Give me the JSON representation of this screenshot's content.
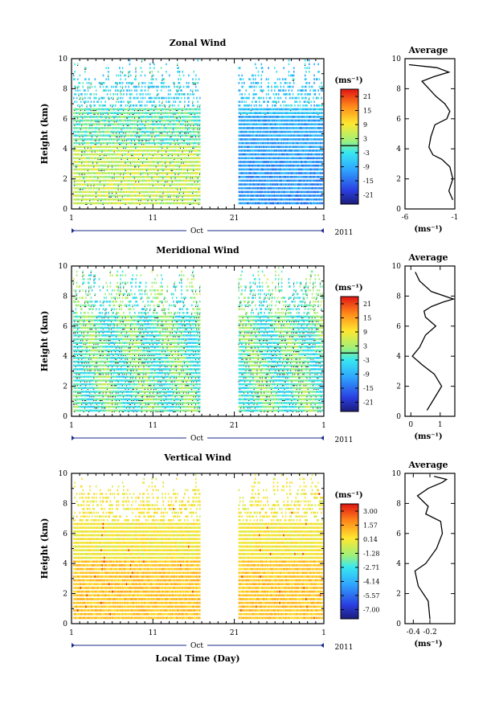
{
  "chart_data": [
    {
      "type": "heatmap",
      "title": "Zonal Wind",
      "ylabel": "Height (km)",
      "ylim": [
        0,
        10
      ],
      "y_ticks": [
        "0",
        "2",
        "4",
        "6",
        "8",
        "10"
      ],
      "x_ticks": [
        "1",
        "11",
        "21",
        "1"
      ],
      "x_month": "Oct",
      "x_year": "2011",
      "data_gap_days": [
        17,
        22
      ],
      "colorbar": {
        "unit": "(ms⁻¹)",
        "labels": [
          "21",
          "15",
          "9",
          "3",
          "-3",
          "-9",
          "-15",
          "-21"
        ],
        "range": [
          -24,
          24
        ]
      },
      "segments": [
        {
          "days": [
            1,
            10
          ],
          "zonal_mean_by_height": {
            "0-2": 5,
            "2-4": 4,
            "4-6": 1,
            "6-10": -3
          }
        },
        {
          "days": [
            10,
            17
          ],
          "zonal_mean_by_height": {
            "0-2": 4,
            "2-4": 3,
            "4-6": 0,
            "6-10": -4
          }
        },
        {
          "days": [
            22,
            32
          ],
          "zonal_mean_by_height": {
            "0-2": -12,
            "2-4": -11,
            "4-6": -8,
            "6-10": -6
          }
        }
      ]
    },
    {
      "type": "heatmap",
      "title": "Meridional Wind",
      "ylabel": "Height (km)",
      "ylim": [
        0,
        10
      ],
      "y_ticks": [
        "0",
        "2",
        "4",
        "6",
        "8",
        "10"
      ],
      "x_ticks": [
        "1",
        "11",
        "21",
        "1"
      ],
      "x_month": "Oct",
      "x_year": "2011",
      "data_gap_days": [
        17,
        22
      ],
      "colorbar": {
        "unit": "(ms⁻¹)",
        "labels": [
          "21",
          "15",
          "9",
          "3",
          "-3",
          "-9",
          "-15",
          "-21"
        ],
        "range": [
          -24,
          24
        ]
      }
    },
    {
      "type": "heatmap",
      "title": "Vertical Wind",
      "xlabel": "Local Time (Day)",
      "ylabel": "Height (km)",
      "ylim": [
        0,
        10
      ],
      "y_ticks": [
        "0",
        "2",
        "4",
        "6",
        "8",
        "10"
      ],
      "x_ticks": [
        "1",
        "11",
        "21",
        "1"
      ],
      "x_month": "Oct",
      "x_year": "2011",
      "data_gap_days": [
        17,
        22
      ],
      "colorbar": {
        "unit": "(ms⁻¹)",
        "labels": [
          "3.00",
          "1.57",
          "0.14",
          "-1.28",
          "-2.71",
          "-4.14",
          "-5.57",
          "-7.00"
        ],
        "range": [
          -7.7,
          3.7
        ]
      }
    },
    {
      "type": "line",
      "title": "Average",
      "xlabel": "(ms⁻¹)",
      "ylabel": "",
      "xlim": [
        -6,
        -1
      ],
      "ylim": [
        0,
        10
      ],
      "x_ticks": [
        "-6",
        "-1"
      ],
      "y_ticks": [
        "0",
        "2",
        "4",
        "6",
        "8",
        "10"
      ],
      "series": [
        {
          "x": [
            -1.2,
            -1.6,
            -1.2,
            -1.5,
            -2.3,
            -3.2,
            -3.6,
            -3.4,
            -3.0,
            -1.8,
            -1.5,
            -2.0,
            -2.9,
            -3.6,
            -4.3,
            -3.1,
            -1.6,
            -2.8,
            -5.6
          ],
          "y": [
            0.6,
            1.2,
            2.0,
            2.8,
            3.3,
            3.6,
            4.1,
            4.8,
            5.6,
            6.0,
            6.5,
            7.0,
            7.5,
            8.0,
            8.5,
            8.8,
            9.1,
            9.4,
            9.6
          ]
        }
      ]
    },
    {
      "type": "line",
      "title": "Average",
      "xlabel": "(ms⁻¹)",
      "ylabel": "",
      "xlim": [
        -0.2,
        1.5
      ],
      "ylim": [
        0,
        10
      ],
      "x_ticks": [
        "0",
        "1"
      ],
      "y_ticks": [
        "0",
        "2",
        "4",
        "6",
        "8",
        "10"
      ],
      "series": [
        {
          "x": [
            0.55,
            0.8,
            1.05,
            0.8,
            0.4,
            0.05,
            0.3,
            0.5,
            0.85,
            0.5,
            0.45,
            0.7,
            1.1,
            1.45,
            0.7,
            0.3,
            0.15
          ],
          "y": [
            0.4,
            1.2,
            2.0,
            2.8,
            3.4,
            4.0,
            4.6,
            5.4,
            6.0,
            6.6,
            7.0,
            7.3,
            7.6,
            7.8,
            8.3,
            9.0,
            9.6
          ]
        }
      ]
    },
    {
      "type": "line",
      "title": "Average",
      "xlabel": "(ms⁻¹)",
      "ylabel": "",
      "xlim": [
        -0.5,
        0.1
      ],
      "ylim": [
        0,
        10
      ],
      "x_ticks": [
        "-0.4",
        "-0.2"
      ],
      "y_ticks": [
        "0",
        "2",
        "4",
        "6",
        "8",
        "10"
      ],
      "series": [
        {
          "x": [
            -0.2,
            -0.22,
            -0.34,
            -0.38,
            -0.25,
            -0.12,
            -0.05,
            -0.07,
            -0.25,
            -0.22,
            -0.35,
            -0.22,
            -0.05,
            0.0,
            -0.15
          ],
          "y": [
            0.3,
            1.5,
            2.5,
            3.5,
            4.0,
            5.0,
            6.0,
            6.8,
            7.3,
            7.8,
            8.5,
            9.0,
            9.4,
            9.6,
            9.8
          ]
        }
      ]
    }
  ]
}
